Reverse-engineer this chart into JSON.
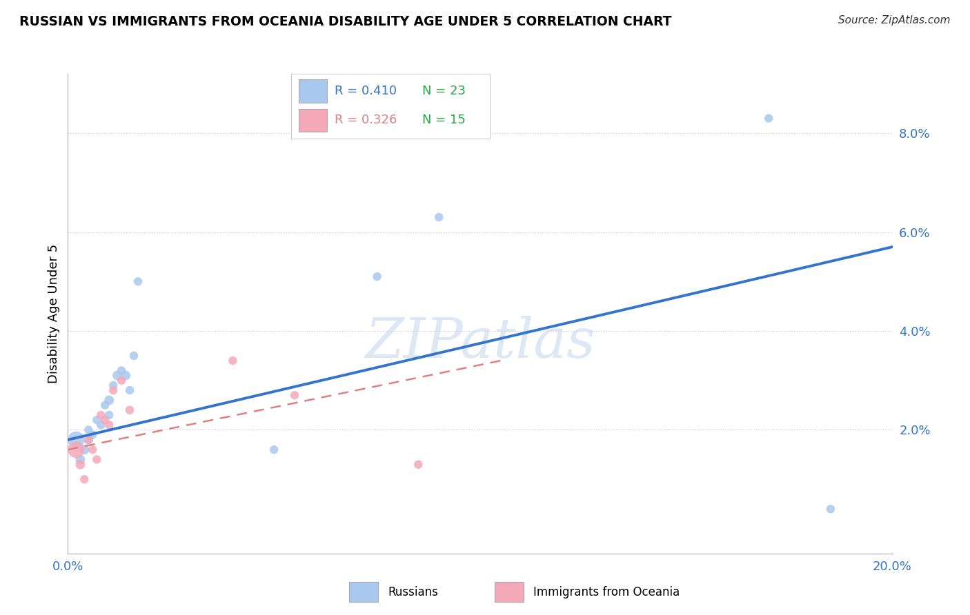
{
  "title": "RUSSIAN VS IMMIGRANTS FROM OCEANIA DISABILITY AGE UNDER 5 CORRELATION CHART",
  "source": "Source: ZipAtlas.com",
  "ylabel": "Disability Age Under 5",
  "xlim": [
    0.0,
    0.2
  ],
  "ylim": [
    -0.005,
    0.092
  ],
  "plot_ylim": [
    0.0,
    0.09
  ],
  "xticks": [
    0.0,
    0.04,
    0.08,
    0.12,
    0.16,
    0.2
  ],
  "yticks_right": [
    0.02,
    0.04,
    0.06,
    0.08
  ],
  "ytick_labels_right": [
    "2.0%",
    "4.0%",
    "6.0%",
    "8.0%"
  ],
  "legend_r_blue": "R = 0.410",
  "legend_n_blue": "N = 23",
  "legend_r_pink": "R = 0.326",
  "legend_n_pink": "N = 15",
  "blue_scatter_color": "#A8C8EE",
  "pink_scatter_color": "#F4A8B8",
  "blue_line_color": "#3374CC",
  "pink_line_color": "#E08080",
  "watermark": "ZIPatlas",
  "watermark_color": "#C8D8EE",
  "russians_x": [
    0.002,
    0.003,
    0.004,
    0.005,
    0.005,
    0.006,
    0.007,
    0.008,
    0.009,
    0.01,
    0.01,
    0.011,
    0.012,
    0.013,
    0.014,
    0.015,
    0.016,
    0.017,
    0.05,
    0.075,
    0.09,
    0.17,
    0.185
  ],
  "russians_y": [
    0.018,
    0.014,
    0.016,
    0.018,
    0.02,
    0.019,
    0.022,
    0.021,
    0.025,
    0.026,
    0.023,
    0.029,
    0.031,
    0.032,
    0.031,
    0.028,
    0.035,
    0.05,
    0.016,
    0.051,
    0.063,
    0.083,
    0.004
  ],
  "russians_size": [
    300,
    100,
    100,
    100,
    80,
    80,
    80,
    80,
    80,
    100,
    80,
    80,
    100,
    80,
    100,
    80,
    80,
    80,
    80,
    80,
    80,
    80,
    80
  ],
  "oceania_x": [
    0.002,
    0.003,
    0.004,
    0.005,
    0.006,
    0.007,
    0.008,
    0.009,
    0.01,
    0.011,
    0.013,
    0.015,
    0.04,
    0.055,
    0.085
  ],
  "oceania_y": [
    0.016,
    0.013,
    0.01,
    0.018,
    0.016,
    0.014,
    0.023,
    0.022,
    0.021,
    0.028,
    0.03,
    0.024,
    0.034,
    0.027,
    0.013
  ],
  "oceania_size": [
    300,
    100,
    80,
    80,
    80,
    80,
    80,
    80,
    80,
    80,
    80,
    80,
    80,
    80,
    80
  ],
  "blue_trend_x": [
    0.0,
    0.2
  ],
  "blue_trend_y": [
    0.018,
    0.057
  ],
  "pink_trend_x": [
    0.0,
    0.105
  ],
  "pink_trend_y": [
    0.016,
    0.034
  ]
}
